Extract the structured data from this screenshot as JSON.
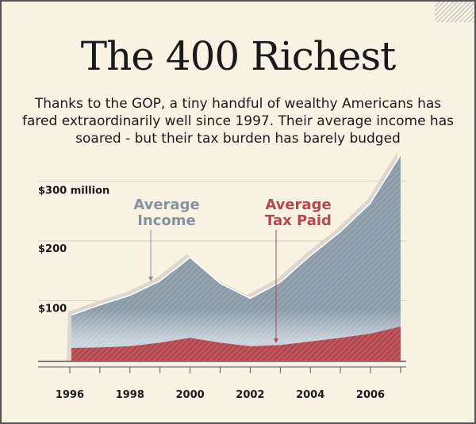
{
  "chart_data": {
    "type": "area",
    "title": "The 400 Richest",
    "subtitle": "Thanks to the GOP, a tiny handful of wealthy Americans has fared extraordinarily well since 1997. Their average income has soared - but their tax burden has barely budged",
    "x": [
      1996,
      1997,
      1998,
      1999,
      2000,
      2001,
      2002,
      2003,
      2004,
      2005,
      2006,
      2007
    ],
    "series": [
      {
        "name": "Average Income",
        "label_lines": [
          "Average",
          "Income"
        ],
        "color": "#8a9aa8",
        "values": [
          75,
          92,
          108,
          132,
          171,
          128,
          103,
          130,
          174,
          214,
          262,
          342
        ]
      },
      {
        "name": "Average Tax Paid",
        "label_lines": [
          "Average",
          "Tax Paid"
        ],
        "color": "#b5474e",
        "values": [
          21,
          22,
          24,
          30,
          38,
          30,
          24,
          26,
          32,
          38,
          45,
          57
        ]
      }
    ],
    "y_ticks": [
      {
        "value": 100,
        "label": "$100"
      },
      {
        "value": 200,
        "label": "$200"
      },
      {
        "value": 300,
        "label": "$300 million"
      }
    ],
    "x_tick_labels": [
      "1996",
      "1998",
      "2000",
      "2002",
      "2004",
      "2006"
    ],
    "ylim": [
      0,
      350
    ],
    "grid": true,
    "unit": "million dollars"
  }
}
